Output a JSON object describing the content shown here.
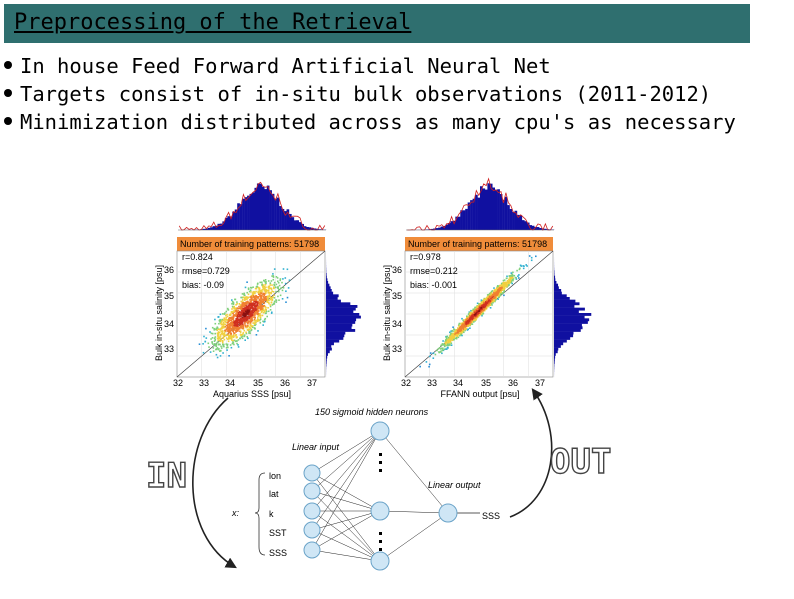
{
  "title": "Preprocessing of the Retrieval",
  "bullets": [
    "In house Feed Forward Artificial Neural Net",
    "Targets consist of in-situ bulk observations (2011-2012)",
    "Minimization distributed across as many cpu's as necessary"
  ],
  "left_plot": {
    "banner": "Number of training patterns: 51798",
    "r": "r=0.824",
    "rmse": "rmse=0.729",
    "bias": "bias: -0.09",
    "xlabel": "Aquarius SSS [psu]",
    "ylabel": "Bulk in-situ salinity [psu]",
    "xticks": [
      "32",
      "33",
      "34",
      "35",
      "36",
      "37"
    ],
    "yticks": [
      "36",
      "35",
      "34",
      "33"
    ]
  },
  "right_plot": {
    "banner": "Number of training patterns: 51798",
    "r": "r=0.978",
    "rmse": "rmse=0.212",
    "bias": "bias: -0.001",
    "xlabel": "FFANN output [psu]",
    "ylabel": "Bulk in-situ salinity [psu]",
    "xticks": [
      "32",
      "33",
      "34",
      "35",
      "36",
      "37"
    ],
    "yticks": [
      "36",
      "35",
      "34",
      "33"
    ]
  },
  "network": {
    "hidden_title": "150 sigmoid hidden neurons",
    "linear_input": "Linear input",
    "linear_output": "Linear output",
    "inputs": [
      "lon",
      "lat",
      "k",
      "SST",
      "SSS"
    ],
    "input_var": "x:",
    "output": "SSS",
    "in_label": "IN",
    "out_label": "OUT"
  },
  "colors": {
    "title_bar": "#2f6f6f",
    "banner": "#f08c3a",
    "hist_fill": "#1010a0",
    "hist_line": "#d02020",
    "node_fill": "#cfe6f5",
    "node_stroke": "#6aa3c8"
  }
}
